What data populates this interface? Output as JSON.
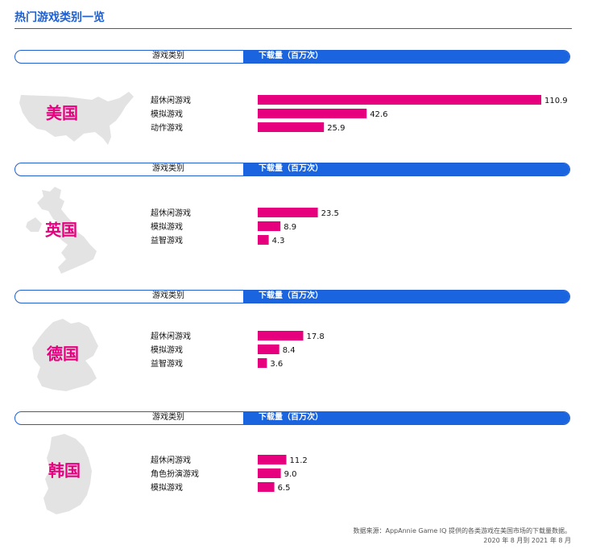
{
  "page": {
    "title": "热门游戏类别一览",
    "source_line1": "数据来源：AppAnnie Game IQ 提供的各类游戏在美国市场的下载量数据。",
    "source_line2": "2020 年 8 月到 2021 年 8 月"
  },
  "colors": {
    "accent_blue": "#1a64e0",
    "bar_pink": "#e6007e",
    "map_gray": "#e3e3e3"
  },
  "headers": {
    "category": "游戏类别",
    "downloads": "下载量（百万次）"
  },
  "chart_data": [
    {
      "type": "bar",
      "orientation": "horizontal",
      "country": "美国",
      "categories": [
        "超休闲游戏",
        "模拟游戏",
        "动作游戏"
      ],
      "values": [
        110.9,
        42.6,
        25.9
      ],
      "value_labels": [
        "110.9",
        "42.6",
        "25.9"
      ],
      "xlim": [
        0,
        110.9
      ]
    },
    {
      "type": "bar",
      "orientation": "horizontal",
      "country": "英国",
      "categories": [
        "超休闲游戏",
        "模拟游戏",
        "益智游戏"
      ],
      "values": [
        23.5,
        8.9,
        4.3
      ],
      "value_labels": [
        "23.5",
        "8.9",
        "4.3"
      ],
      "xlim": [
        0,
        110.9
      ]
    },
    {
      "type": "bar",
      "orientation": "horizontal",
      "country": "德国",
      "categories": [
        "超休闲游戏",
        "模拟游戏",
        "益智游戏"
      ],
      "values": [
        17.8,
        8.4,
        3.6
      ],
      "value_labels": [
        "17.8",
        "8.4",
        "3.6"
      ],
      "xlim": [
        0,
        110.9
      ]
    },
    {
      "type": "bar",
      "orientation": "horizontal",
      "country": "韩国",
      "categories": [
        "超休闲游戏",
        "角色扮演游戏",
        "模拟游戏"
      ],
      "values": [
        11.2,
        9.0,
        6.5
      ],
      "value_labels": [
        "11.2",
        "9.0",
        "6.5"
      ],
      "xlim": [
        0,
        110.9
      ]
    }
  ]
}
